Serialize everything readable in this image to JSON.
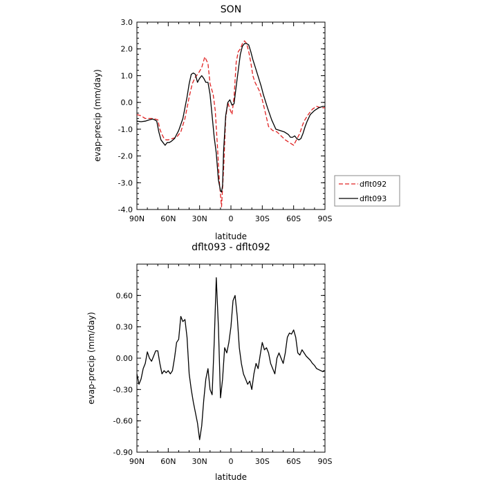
{
  "chart_data": [
    {
      "type": "line",
      "title": "SON",
      "xlabel": "latitude",
      "ylabel": "evap-precip (mm/day)",
      "xlim": [
        90,
        -90
      ],
      "ylim": [
        -4.0,
        3.0
      ],
      "xtick_values": [
        90,
        60,
        30,
        0,
        -30,
        -60,
        -90
      ],
      "xtick_labels": [
        "90N",
        "60N",
        "30N",
        "0",
        "30S",
        "60S",
        "90S"
      ],
      "ytick_values": [
        3.0,
        2.0,
        1.0,
        0.0,
        -1.0,
        -2.0,
        -3.0,
        -4.0
      ],
      "ytick_labels": [
        "3.0",
        "2.0",
        "1.0",
        "0.0",
        "-1.0",
        "-2.0",
        "-3.0",
        "-4.0"
      ],
      "grid": false,
      "legend_position": "right",
      "series": [
        {
          "name": "dflt092",
          "color": "#e02020",
          "dash": "dashed",
          "x": [
            90,
            86,
            82,
            78,
            74,
            70,
            68,
            66,
            64,
            62,
            60,
            56,
            52,
            48,
            44,
            40,
            37,
            34,
            31,
            28,
            25,
            22,
            20,
            17,
            15,
            13,
            11,
            9,
            7,
            5,
            3,
            1,
            -1,
            -3,
            -5,
            -7,
            -9,
            -11,
            -13,
            -15,
            -17,
            -19,
            -21,
            -23,
            -25,
            -27,
            -30,
            -33,
            -36,
            -40,
            -44,
            -48,
            -52,
            -56,
            -60,
            -62,
            -64,
            -66,
            -68,
            -70,
            -74,
            -78,
            -82,
            -86,
            -90
          ],
          "y": [
            -0.45,
            -0.5,
            -0.6,
            -0.6,
            -0.6,
            -0.65,
            -1.0,
            -1.2,
            -1.35,
            -1.4,
            -1.4,
            -1.35,
            -1.3,
            -1.1,
            -0.6,
            0.2,
            0.7,
            0.95,
            1.1,
            1.3,
            1.7,
            1.45,
            0.7,
            0.3,
            -0.3,
            -1.6,
            -3.0,
            -3.9,
            -2.5,
            -0.6,
            0.0,
            -0.25,
            -0.45,
            0.2,
            1.5,
            1.9,
            2.0,
            2.2,
            2.3,
            2.2,
            1.9,
            1.5,
            1.0,
            0.75,
            0.6,
            0.45,
            0.1,
            -0.4,
            -0.9,
            -1.05,
            -1.1,
            -1.25,
            -1.4,
            -1.5,
            -1.6,
            -1.45,
            -1.3,
            -1.15,
            -0.9,
            -0.7,
            -0.45,
            -0.25,
            -0.15,
            -0.2,
            -0.2
          ]
        },
        {
          "name": "dflt093",
          "color": "#000000",
          "dash": "solid",
          "x": [
            90,
            86,
            82,
            78,
            75,
            73,
            71,
            69,
            67,
            65,
            63,
            61,
            59,
            57,
            54,
            50,
            46,
            42,
            40,
            38,
            36,
            34,
            32,
            30,
            28,
            26,
            24,
            22,
            20,
            18,
            16,
            14,
            12,
            10,
            9,
            8,
            7,
            5,
            3,
            1,
            -1,
            -3,
            -5,
            -7,
            -9,
            -11,
            -13,
            -15,
            -17,
            -19,
            -21,
            -23,
            -25,
            -27,
            -29,
            -31,
            -35,
            -39,
            -43,
            -47,
            -51,
            -55,
            -57,
            -59,
            -61,
            -63,
            -65,
            -67,
            -69,
            -71,
            -73,
            -76,
            -80,
            -84,
            -88,
            -90
          ],
          "y": [
            -0.7,
            -0.72,
            -0.7,
            -0.65,
            -0.62,
            -0.65,
            -0.7,
            -1.1,
            -1.4,
            -1.5,
            -1.6,
            -1.5,
            -1.5,
            -1.45,
            -1.35,
            -1.05,
            -0.6,
            0.2,
            0.7,
            1.05,
            1.1,
            1.05,
            0.75,
            0.9,
            1.0,
            0.9,
            0.75,
            0.75,
            0.3,
            -0.5,
            -1.3,
            -1.9,
            -2.9,
            -3.3,
            -3.35,
            -3.1,
            -1.8,
            -0.5,
            0.0,
            0.1,
            -0.1,
            -0.05,
            0.6,
            1.2,
            1.8,
            2.1,
            2.2,
            2.2,
            2.15,
            1.9,
            1.6,
            1.35,
            1.1,
            0.85,
            0.6,
            0.3,
            -0.2,
            -0.65,
            -1.0,
            -1.05,
            -1.1,
            -1.2,
            -1.3,
            -1.3,
            -1.25,
            -1.35,
            -1.4,
            -1.35,
            -1.15,
            -0.9,
            -0.7,
            -0.45,
            -0.3,
            -0.2,
            -0.15,
            -0.15
          ]
        }
      ]
    },
    {
      "type": "line",
      "title": "dflt093 - dflt092",
      "xlabel": "latitude",
      "ylabel": "evap-precip (mm/day)",
      "xlim": [
        90,
        -90
      ],
      "ylim": [
        -0.9,
        0.9
      ],
      "xtick_values": [
        90,
        60,
        30,
        0,
        -30,
        -60,
        -90
      ],
      "xtick_labels": [
        "90N",
        "60N",
        "30N",
        "0",
        "30S",
        "60S",
        "90S"
      ],
      "ytick_values": [
        0.6,
        0.3,
        0.0,
        -0.3,
        -0.6,
        -0.9
      ],
      "ytick_labels": [
        "0.60",
        "0.30",
        "0.00",
        "-0.30",
        "-0.60",
        "-0.90"
      ],
      "grid": false,
      "series": [
        {
          "color": "#000000",
          "dash": "solid",
          "x": [
            90,
            88,
            86,
            84,
            82,
            80,
            78,
            76,
            74,
            72,
            70,
            68,
            66,
            64,
            62,
            60,
            58,
            56,
            54,
            52,
            50,
            48,
            46,
            44,
            42,
            40,
            38,
            36,
            34,
            32,
            30,
            28,
            26,
            24,
            22,
            20,
            18,
            16,
            14,
            12,
            10,
            8,
            6,
            4,
            2,
            0,
            -2,
            -4,
            -6,
            -8,
            -10,
            -12,
            -14,
            -16,
            -18,
            -20,
            -22,
            -24,
            -26,
            -28,
            -30,
            -32,
            -34,
            -36,
            -38,
            -40,
            -42,
            -44,
            -46,
            -48,
            -50,
            -52,
            -54,
            -56,
            -58,
            -60,
            -62,
            -64,
            -66,
            -68,
            -70,
            -72,
            -74,
            -76,
            -78,
            -80,
            -82,
            -84,
            -86,
            -88,
            -90
          ],
          "y": [
            -0.15,
            -0.25,
            -0.2,
            -0.1,
            -0.05,
            0.06,
            0.0,
            -0.03,
            0.02,
            0.07,
            0.07,
            -0.05,
            -0.15,
            -0.12,
            -0.14,
            -0.12,
            -0.15,
            -0.12,
            0.0,
            0.15,
            0.18,
            0.4,
            0.35,
            0.37,
            0.2,
            -0.15,
            -0.3,
            -0.42,
            -0.52,
            -0.62,
            -0.78,
            -0.65,
            -0.4,
            -0.2,
            -0.1,
            -0.3,
            -0.35,
            0.15,
            0.77,
            0.3,
            -0.38,
            -0.2,
            0.1,
            0.05,
            0.15,
            0.3,
            0.55,
            0.6,
            0.4,
            0.1,
            -0.05,
            -0.15,
            -0.2,
            -0.25,
            -0.22,
            -0.3,
            -0.15,
            -0.05,
            -0.1,
            0.03,
            0.15,
            0.08,
            0.1,
            0.05,
            -0.05,
            -0.1,
            -0.15,
            0.0,
            0.05,
            0.0,
            -0.05,
            0.05,
            0.2,
            0.24,
            0.23,
            0.27,
            0.2,
            0.05,
            0.03,
            0.08,
            0.05,
            0.02,
            0.0,
            -0.02,
            -0.05,
            -0.07,
            -0.1,
            -0.11,
            -0.12,
            -0.13,
            -0.12
          ]
        }
      ]
    }
  ]
}
